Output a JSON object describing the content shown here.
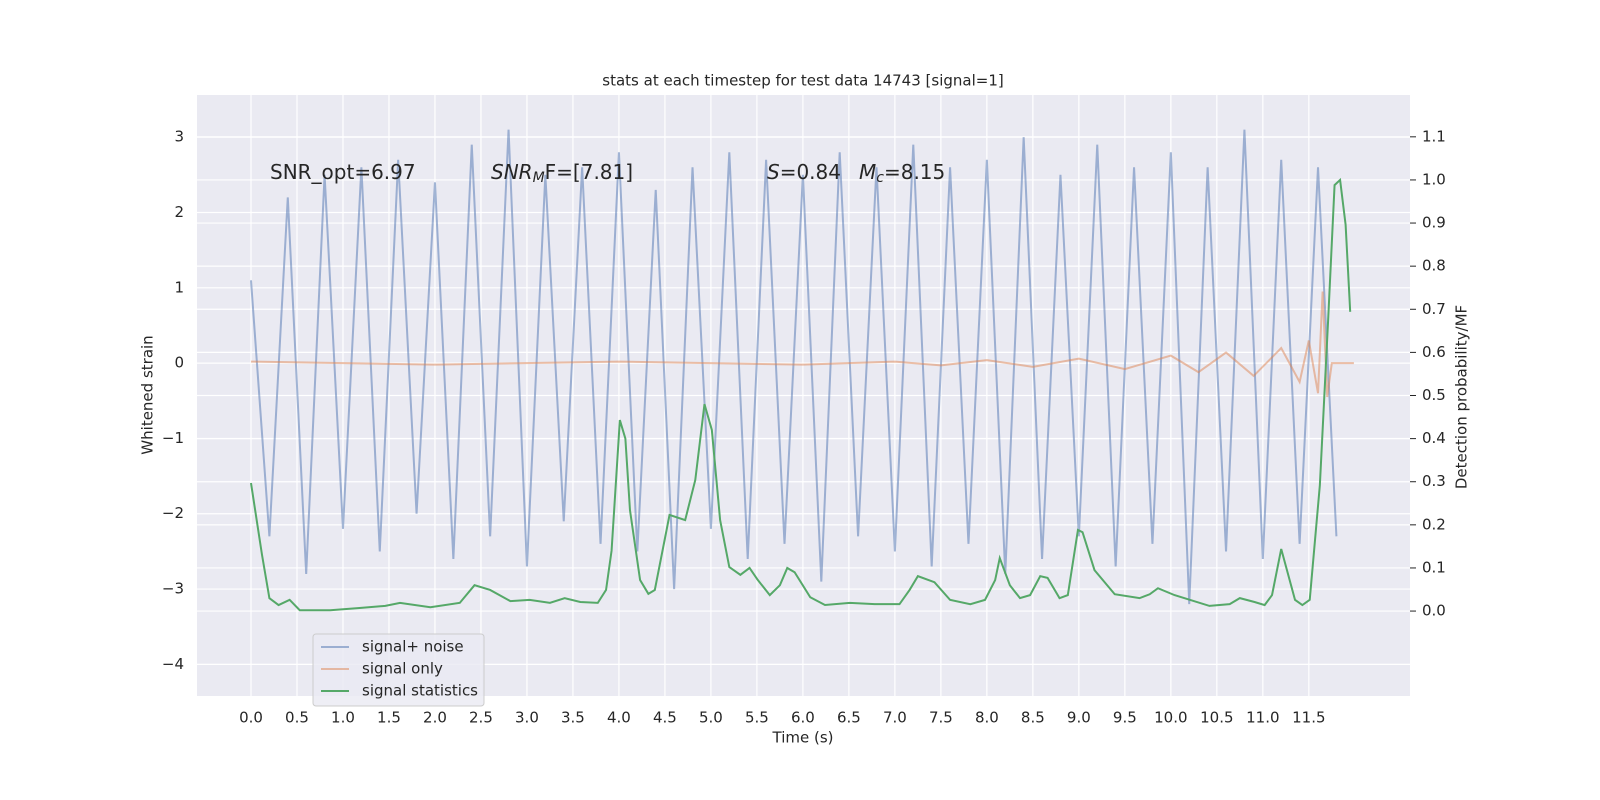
{
  "chart_data": {
    "type": "line",
    "title": "stats at each timestep for test data 14743 [signal=1]",
    "xlabel": "Time (s)",
    "ylabel": "Whitened strain",
    "y2label": "Detection probability/MF",
    "xlim": [
      -0.587,
      12.6
    ],
    "ylim": [
      -4.42,
      3.56
    ],
    "y2lim": [
      -0.197,
      1.197
    ],
    "xticks": [
      {
        "value": 0,
        "label": "0.0"
      },
      0.5,
      {
        "value": 1,
        "label": "1.0"
      },
      1.5,
      {
        "value": 2,
        "label": "2.0"
      },
      2.5,
      {
        "value": 3,
        "label": "3.0"
      },
      3.5,
      {
        "value": 4,
        "label": "4.0"
      },
      4.5,
      {
        "value": 5,
        "label": "5.0"
      },
      5.5,
      {
        "value": 6,
        "label": "6.0"
      },
      6.5,
      {
        "value": 7,
        "label": "7.0"
      },
      7.5,
      {
        "value": 8,
        "label": "8.0"
      },
      8.5,
      {
        "value": 9,
        "label": "9.0"
      },
      9.5,
      {
        "value": 10,
        "label": "10.0"
      },
      10.5,
      {
        "value": 11,
        "label": "11.0"
      },
      11.5
    ],
    "yticks": [
      {
        "value": -4,
        "label": "−4"
      },
      {
        "value": -3,
        "label": "−3"
      },
      {
        "value": -2,
        "label": "−2"
      },
      {
        "value": -1,
        "label": "−1"
      },
      0,
      1,
      2,
      3
    ],
    "y2ticks": [
      {
        "value": 0,
        "label": "0.0"
      },
      0.1,
      0.2,
      0.3,
      0.4,
      0.5,
      0.6,
      0.7,
      0.8,
      0.9,
      {
        "value": 1,
        "label": "1.0"
      },
      1.1
    ],
    "grid": true,
    "legend": "lower left",
    "annotations": [
      {
        "text": "SNR_opt=6.97"
      },
      {
        "text": "SNR",
        "sub": "M",
        "rest": "F=[7.81]"
      },
      {
        "text": "S",
        "rest": "=0.84"
      },
      {
        "text": "M",
        "sub": "c",
        "rest": "=8.15"
      }
    ],
    "series": [
      {
        "name": "signal+ noise",
        "color": "#4c72b0",
        "alpha": 0.5,
        "x": [
          0,
          0.2,
          0.4,
          0.6,
          0.8,
          1,
          1.2,
          1.4,
          1.6,
          1.8,
          2,
          2.2,
          2.4,
          2.6,
          2.8,
          3,
          3.2,
          3.4,
          3.6,
          3.8,
          4,
          4.2,
          4.4,
          4.6,
          4.8,
          5,
          5.2,
          5.4,
          5.6,
          5.8,
          6,
          6.2,
          6.4,
          6.6,
          6.8,
          7,
          7.2,
          7.4,
          7.6,
          7.8,
          8,
          8.2,
          8.4,
          8.6,
          8.8,
          9,
          9.2,
          9.4,
          9.6,
          9.8,
          10,
          10.2,
          10.4,
          10.6,
          10.8,
          11,
          11.2,
          11.4,
          11.6,
          11.8
        ],
        "values": [
          1.1,
          -2.3,
          2.2,
          -2.8,
          2.5,
          -2.2,
          2.6,
          -2.5,
          2.7,
          -2.0,
          2.4,
          -2.6,
          2.9,
          -2.3,
          3.1,
          -2.7,
          2.5,
          -2.1,
          2.6,
          -2.4,
          2.8,
          -2.5,
          2.3,
          -3.0,
          2.6,
          -2.2,
          2.8,
          -2.6,
          2.7,
          -2.4,
          2.5,
          -2.9,
          2.8,
          -2.3,
          2.6,
          -2.5,
          2.9,
          -2.7,
          2.6,
          -2.4,
          2.7,
          -2.8,
          3.0,
          -2.6,
          2.5,
          -2.3,
          2.9,
          -2.7,
          2.6,
          -2.4,
          2.8,
          -3.2,
          2.6,
          -2.5,
          3.1,
          -2.6,
          2.7,
          -2.4,
          2.6,
          -2.3
        ]
      },
      {
        "name": "signal only",
        "color": "#dd8452",
        "alpha": 0.5,
        "x": [
          0,
          2,
          4,
          6,
          7,
          7.5,
          8,
          8.5,
          9,
          9.5,
          10,
          10.3,
          10.6,
          10.9,
          11.2,
          11.4,
          11.5,
          11.6,
          11.65,
          11.7,
          11.75,
          11.8,
          11.9,
          11.99
        ],
        "values": [
          0.02,
          -0.02,
          0.02,
          -0.02,
          0.02,
          -0.03,
          0.04,
          -0.05,
          0.06,
          -0.08,
          0.1,
          -0.12,
          0.14,
          -0.17,
          0.2,
          -0.25,
          0.3,
          -0.4,
          0.95,
          -0.45,
          0.0,
          0.0,
          0.0,
          0.0
        ]
      },
      {
        "name": "signal statistics",
        "color": "#55a868",
        "alpha": 1,
        "axis": "y2",
        "x": [
          0,
          0.12,
          0.2,
          0.3,
          0.42,
          0.53,
          0.86,
          1.18,
          1.46,
          1.62,
          1.95,
          2.27,
          2.43,
          2.6,
          2.82,
          3.03,
          3.25,
          3.41,
          3.58,
          3.77,
          3.86,
          3.92,
          4.01,
          4.07,
          4.12,
          4.23,
          4.32,
          4.39,
          4.55,
          4.72,
          4.83,
          4.93,
          5.01,
          5.1,
          5.2,
          5.32,
          5.42,
          5.51,
          5.64,
          5.75,
          5.83,
          5.91,
          6.08,
          6.24,
          6.51,
          6.78,
          7.05,
          7.16,
          7.25,
          7.43,
          7.6,
          7.82,
          7.98,
          8.09,
          8.14,
          8.25,
          8.36,
          8.47,
          8.58,
          8.66,
          8.79,
          8.88,
          8.99,
          9.04,
          9.17,
          9.39,
          9.66,
          9.77,
          9.86,
          10.04,
          10.42,
          10.64,
          10.75,
          10.91,
          11.02,
          11.1,
          11.2,
          11.35,
          11.43,
          11.51,
          11.62,
          11.71,
          11.78,
          11.84,
          11.9,
          11.95
        ],
        "values": [
          0.297,
          0.13,
          0.03,
          0.014,
          0.026,
          0.002,
          0.002,
          0.007,
          0.012,
          0.019,
          0.009,
          0.019,
          0.06,
          0.049,
          0.023,
          0.026,
          0.019,
          0.03,
          0.021,
          0.019,
          0.049,
          0.14,
          0.443,
          0.4,
          0.234,
          0.072,
          0.04,
          0.049,
          0.223,
          0.211,
          0.304,
          0.48,
          0.42,
          0.211,
          0.102,
          0.084,
          0.1,
          0.072,
          0.037,
          0.06,
          0.1,
          0.09,
          0.032,
          0.014,
          0.019,
          0.016,
          0.016,
          0.049,
          0.081,
          0.067,
          0.026,
          0.016,
          0.026,
          0.072,
          0.123,
          0.06,
          0.03,
          0.037,
          0.081,
          0.077,
          0.03,
          0.037,
          0.188,
          0.183,
          0.095,
          0.039,
          0.03,
          0.039,
          0.053,
          0.037,
          0.012,
          0.016,
          0.03,
          0.021,
          0.014,
          0.037,
          0.144,
          0.026,
          0.014,
          0.026,
          0.292,
          0.675,
          0.988,
          1.0,
          0.896,
          0.694
        ]
      }
    ]
  }
}
